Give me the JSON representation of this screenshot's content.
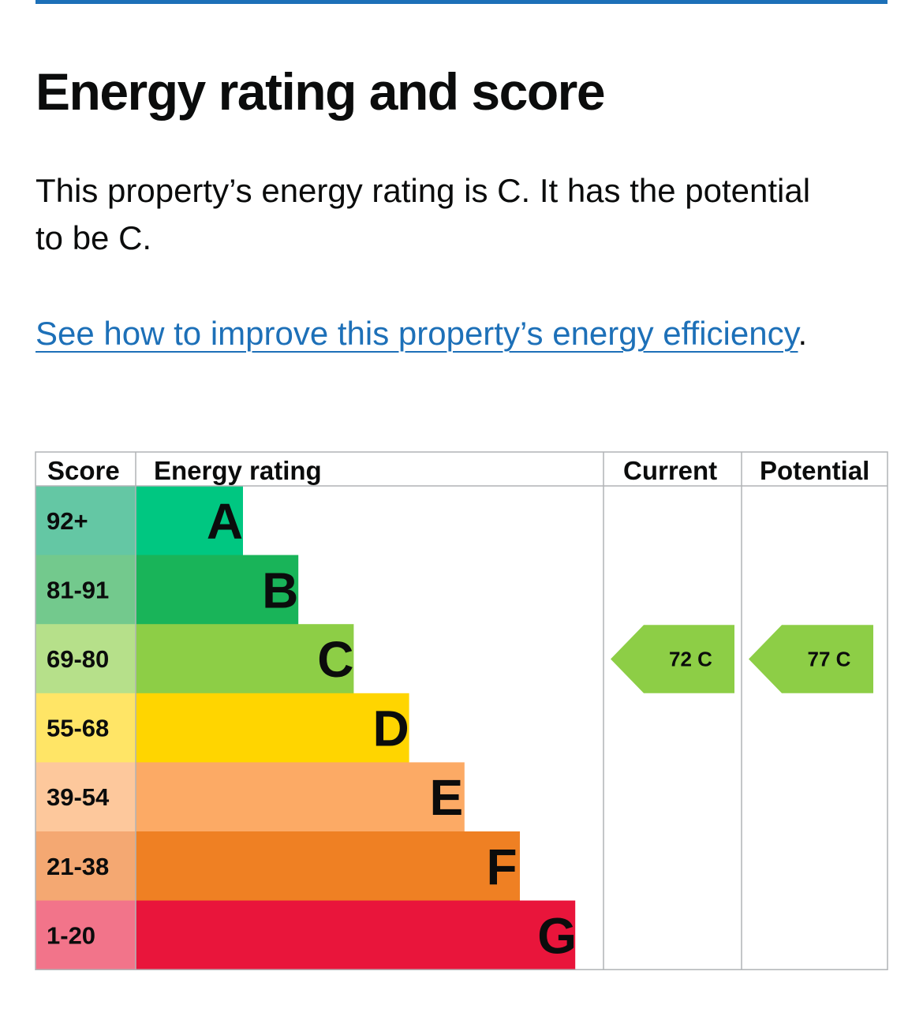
{
  "page": {
    "title": "Energy rating and score",
    "summary": "This property’s energy rating is C. It has the potential to be C.",
    "link_text": "See how to improve this property’s energy efficiency",
    "link_suffix": ".",
    "accent_color": "#1d70b8"
  },
  "chart_data": {
    "type": "bar",
    "columns": [
      "Score",
      "Energy rating",
      "Current",
      "Potential"
    ],
    "bands": [
      {
        "score": "92+",
        "rating": "A",
        "color": "#00c781",
        "score_bg": "#64c7a4"
      },
      {
        "score": "81-91",
        "rating": "B",
        "color": "#19b459",
        "score_bg": "#73c98d"
      },
      {
        "score": "69-80",
        "rating": "C",
        "color": "#8dce46",
        "score_bg": "#b6e08a"
      },
      {
        "score": "55-68",
        "rating": "D",
        "color": "#ffd500",
        "score_bg": "#ffe566"
      },
      {
        "score": "39-54",
        "rating": "E",
        "color": "#fcaa65",
        "score_bg": "#fdc89c"
      },
      {
        "score": "21-38",
        "rating": "F",
        "color": "#ef8023",
        "score_bg": "#f4a872"
      },
      {
        "score": "1-20",
        "rating": "G",
        "color": "#e9153b",
        "score_bg": "#f2748a"
      }
    ],
    "current": {
      "score": 72,
      "rating": "C",
      "label": "72  C"
    },
    "potential": {
      "score": 77,
      "rating": "C",
      "label": "77  C"
    }
  }
}
